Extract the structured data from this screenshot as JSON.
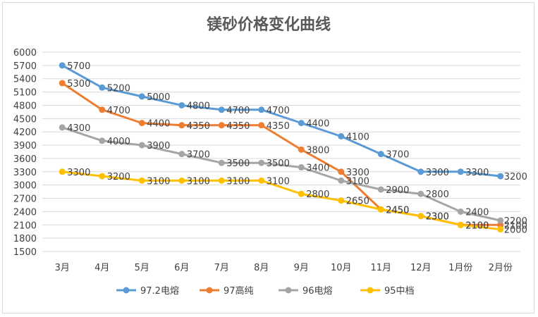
{
  "chart_data": {
    "type": "line",
    "title": "镁砂价格变化曲线",
    "xlabel": "",
    "ylabel": "",
    "categories": [
      "3月",
      "4月",
      "5月",
      "6月",
      "7月",
      "8月",
      "9月",
      "10月",
      "11月",
      "12月",
      "1月份",
      "2月份"
    ],
    "ylim": [
      1500,
      6000
    ],
    "yticks": [
      1500,
      1800,
      2100,
      2400,
      2700,
      3000,
      3300,
      3600,
      3900,
      4200,
      4500,
      4800,
      5100,
      5400,
      5700,
      6000
    ],
    "grid": true,
    "legend_position": "bottom",
    "series": [
      {
        "name": "97.2电熔",
        "color": "#5b9bd5",
        "values": [
          5700,
          5200,
          5000,
          4800,
          4700,
          4700,
          4400,
          4100,
          3700,
          3300,
          3300,
          3200
        ]
      },
      {
        "name": "97高纯",
        "color": "#ed7d31",
        "values": [
          5300,
          4700,
          4400,
          4350,
          4350,
          4350,
          3800,
          3300,
          2450,
          2300,
          2100,
          2100
        ]
      },
      {
        "name": "96电熔",
        "color": "#a5a5a5",
        "values": [
          4300,
          4000,
          3900,
          3700,
          3500,
          3500,
          3400,
          3100,
          2900,
          2800,
          2400,
          2200
        ]
      },
      {
        "name": "95中档",
        "color": "#ffc000",
        "values": [
          3300,
          3200,
          3100,
          3100,
          3100,
          3100,
          2800,
          2650,
          2450,
          2300,
          2100,
          2000
        ]
      }
    ]
  }
}
